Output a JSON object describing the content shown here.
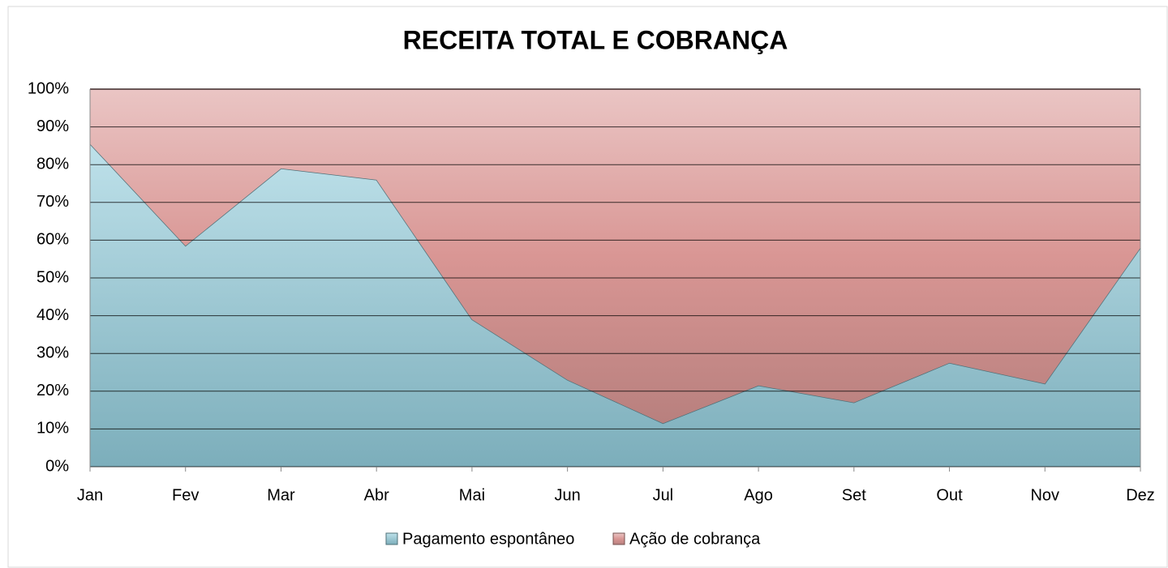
{
  "chart_data": {
    "type": "stacked_area_percent",
    "title": "RECEITA TOTAL E COBRANÇA",
    "categories": [
      "Jan",
      "Fev",
      "Mar",
      "Abr",
      "Mai",
      "Jun",
      "Jul",
      "Ago",
      "Set",
      "Out",
      "Nov",
      "Dez"
    ],
    "series": [
      {
        "name": "Pagamento espontâneo",
        "color": "#92cddc",
        "values": [
          85.5,
          58.5,
          79,
          76,
          39,
          23,
          11.5,
          21.5,
          17,
          27.5,
          22,
          58
        ]
      },
      {
        "name": "Ação de cobrança",
        "color": "#d99694",
        "values": [
          14.5,
          41.5,
          21,
          24,
          61,
          77,
          88.5,
          78.5,
          83,
          72.5,
          78,
          42
        ]
      }
    ],
    "ylim": [
      0,
      100
    ],
    "yticks": [
      {
        "value": 0,
        "label": "0%"
      },
      {
        "value": 10,
        "label": "10%"
      },
      {
        "value": 20,
        "label": "20%"
      },
      {
        "value": 30,
        "label": "30%"
      },
      {
        "value": 40,
        "label": "40%"
      },
      {
        "value": 50,
        "label": "50%"
      },
      {
        "value": 60,
        "label": "60%"
      },
      {
        "value": 70,
        "label": "70%"
      },
      {
        "value": 80,
        "label": "80%"
      },
      {
        "value": 90,
        "label": "90%"
      },
      {
        "value": 100,
        "label": "100%"
      }
    ],
    "grid": true,
    "legend": "bottom"
  }
}
